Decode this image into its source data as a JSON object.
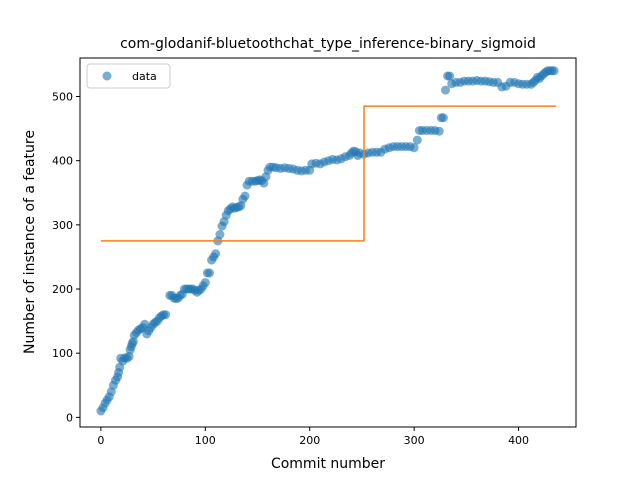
{
  "chart_data": {
    "type": "scatter",
    "title": "com-glodanif-bluetoothchat_type_inference-binary_sigmoid",
    "xlabel": "Commit number",
    "ylabel": "Number of instance of a feature",
    "xlim": [
      -20,
      455
    ],
    "ylim": [
      -15,
      560
    ],
    "xticks": [
      0,
      100,
      200,
      300,
      400
    ],
    "yticks": [
      0,
      100,
      200,
      300,
      400,
      500
    ],
    "grid": false,
    "legend": {
      "position": "top-left",
      "entries": [
        "data"
      ]
    },
    "colors": {
      "data": "#1f77b4",
      "fit": "#ff7f0e"
    },
    "series": [
      {
        "name": "data",
        "kind": "scatter",
        "points": [
          [
            0,
            10
          ],
          [
            2,
            15
          ],
          [
            4,
            22
          ],
          [
            6,
            27
          ],
          [
            8,
            32
          ],
          [
            10,
            40
          ],
          [
            12,
            50
          ],
          [
            14,
            58
          ],
          [
            16,
            63
          ],
          [
            17,
            70
          ],
          [
            18,
            78
          ],
          [
            19,
            92
          ],
          [
            21,
            88
          ],
          [
            23,
            93
          ],
          [
            25,
            92
          ],
          [
            27,
            95
          ],
          [
            28,
            105
          ],
          [
            29,
            110
          ],
          [
            30,
            115
          ],
          [
            31,
            118
          ],
          [
            32,
            128
          ],
          [
            34,
            132
          ],
          [
            36,
            136
          ],
          [
            38,
            138
          ],
          [
            40,
            140
          ],
          [
            42,
            145
          ],
          [
            44,
            130
          ],
          [
            46,
            135
          ],
          [
            48,
            140
          ],
          [
            50,
            145
          ],
          [
            52,
            148
          ],
          [
            54,
            150
          ],
          [
            56,
            155
          ],
          [
            58,
            158
          ],
          [
            60,
            160
          ],
          [
            62,
            160
          ],
          [
            66,
            190
          ],
          [
            68,
            190
          ],
          [
            70,
            186
          ],
          [
            72,
            185
          ],
          [
            74,
            186
          ],
          [
            76,
            190
          ],
          [
            78,
            192
          ],
          [
            80,
            200
          ],
          [
            82,
            200
          ],
          [
            84,
            200
          ],
          [
            86,
            200
          ],
          [
            88,
            200
          ],
          [
            90,
            198
          ],
          [
            92,
            195
          ],
          [
            94,
            198
          ],
          [
            96,
            200
          ],
          [
            98,
            205
          ],
          [
            100,
            210
          ],
          [
            102,
            225
          ],
          [
            104,
            225
          ],
          [
            106,
            245
          ],
          [
            108,
            250
          ],
          [
            110,
            255
          ],
          [
            112,
            275
          ],
          [
            114,
            285
          ],
          [
            116,
            298
          ],
          [
            118,
            305
          ],
          [
            120,
            315
          ],
          [
            122,
            322
          ],
          [
            124,
            325
          ],
          [
            126,
            328
          ],
          [
            128,
            326
          ],
          [
            130,
            327
          ],
          [
            132,
            328
          ],
          [
            134,
            330
          ],
          [
            136,
            340
          ],
          [
            138,
            345
          ],
          [
            140,
            362
          ],
          [
            142,
            368
          ],
          [
            145,
            368
          ],
          [
            148,
            368
          ],
          [
            150,
            369
          ],
          [
            152,
            370
          ],
          [
            154,
            369
          ],
          [
            156,
            365
          ],
          [
            158,
            375
          ],
          [
            160,
            385
          ],
          [
            162,
            390
          ],
          [
            165,
            390
          ],
          [
            168,
            389
          ],
          [
            172,
            388
          ],
          [
            176,
            389
          ],
          [
            180,
            388
          ],
          [
            184,
            387
          ],
          [
            188,
            385
          ],
          [
            192,
            384
          ],
          [
            196,
            385
          ],
          [
            200,
            385
          ],
          [
            202,
            395
          ],
          [
            206,
            396
          ],
          [
            210,
            395
          ],
          [
            214,
            398
          ],
          [
            218,
            400
          ],
          [
            222,
            402
          ],
          [
            226,
            401
          ],
          [
            230,
            403
          ],
          [
            234,
            406
          ],
          [
            238,
            408
          ],
          [
            240,
            412
          ],
          [
            242,
            415
          ],
          [
            244,
            414
          ],
          [
            246,
            408
          ],
          [
            248,
            412
          ],
          [
            252,
            410
          ],
          [
            256,
            412
          ],
          [
            260,
            413
          ],
          [
            264,
            413
          ],
          [
            268,
            413
          ],
          [
            272,
            418
          ],
          [
            276,
            420
          ],
          [
            280,
            422
          ],
          [
            284,
            422
          ],
          [
            288,
            422
          ],
          [
            292,
            422
          ],
          [
            296,
            422
          ],
          [
            300,
            420
          ],
          [
            303,
            432
          ],
          [
            305,
            447
          ],
          [
            308,
            447
          ],
          [
            312,
            447
          ],
          [
            316,
            447
          ],
          [
            320,
            447
          ],
          [
            324,
            446
          ],
          [
            326,
            467
          ],
          [
            328,
            467
          ],
          [
            330,
            510
          ],
          [
            332,
            532
          ],
          [
            334,
            532
          ],
          [
            336,
            520
          ],
          [
            340,
            522
          ],
          [
            344,
            522
          ],
          [
            348,
            524
          ],
          [
            352,
            524
          ],
          [
            356,
            524
          ],
          [
            360,
            525
          ],
          [
            364,
            524
          ],
          [
            368,
            524
          ],
          [
            372,
            523
          ],
          [
            376,
            522
          ],
          [
            380,
            522
          ],
          [
            384,
            515
          ],
          [
            388,
            516
          ],
          [
            392,
            522
          ],
          [
            396,
            522
          ],
          [
            400,
            520
          ],
          [
            404,
            519
          ],
          [
            408,
            519
          ],
          [
            412,
            519
          ],
          [
            414,
            522
          ],
          [
            416,
            525
          ],
          [
            418,
            530
          ],
          [
            420,
            528
          ],
          [
            422,
            532
          ],
          [
            424,
            535
          ],
          [
            426,
            538
          ],
          [
            428,
            540
          ],
          [
            430,
            540
          ],
          [
            432,
            540
          ],
          [
            434,
            540
          ]
        ]
      },
      {
        "name": "fit",
        "kind": "step",
        "points": [
          [
            0,
            275
          ],
          [
            252,
            275
          ],
          [
            252,
            485
          ],
          [
            436,
            485
          ]
        ]
      }
    ]
  }
}
